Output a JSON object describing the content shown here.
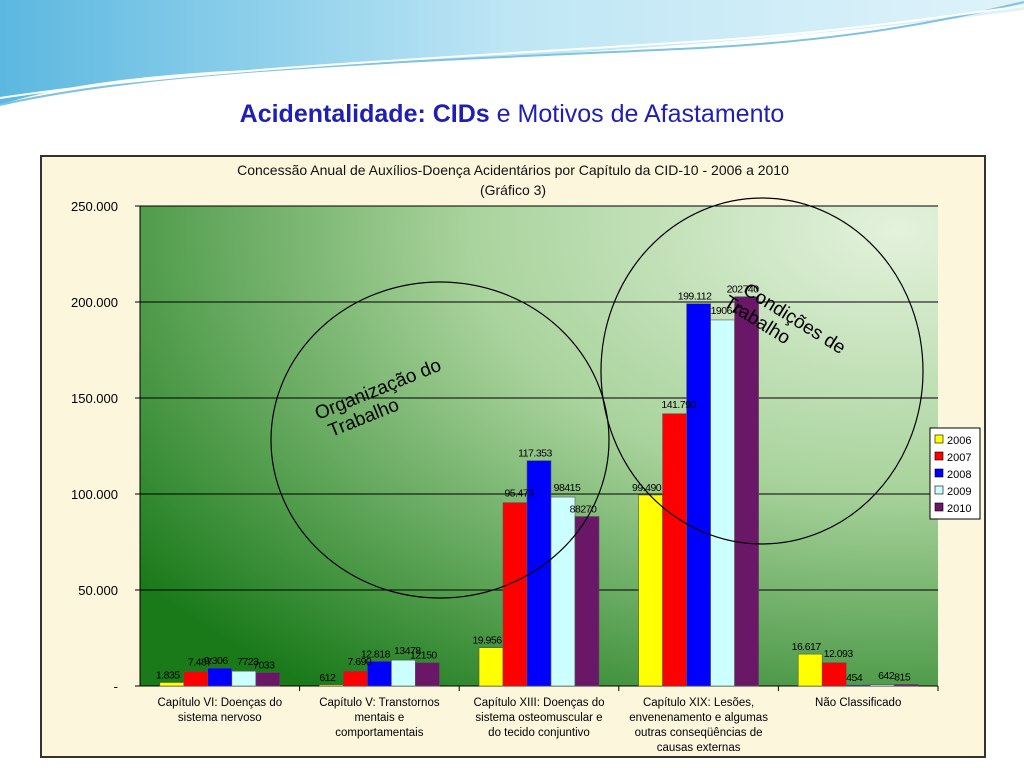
{
  "slide": {
    "title_bold": "Acidentalidade: CIDs",
    "title_rest": " e Motivos de Afastamento"
  },
  "colors": {
    "title": "#1f1fb4",
    "frame_bg": "#fbf6dc",
    "plot_bg_dark": "#1a7a1a",
    "plot_bg_light": "#c9e4c0"
  },
  "chart_data": {
    "type": "bar",
    "title": "Concessão Anual de Auxílios-Doença Acidentários por Capítulo da CID-10 - 2006 a 2010",
    "subtitle": "(Gráfico 3)",
    "ylim": [
      0,
      250000
    ],
    "yticks": [
      {
        "value": 0,
        "label": "-"
      },
      {
        "value": 50000,
        "label": "50.000"
      },
      {
        "value": 100000,
        "label": "100.000"
      },
      {
        "value": 150000,
        "label": "150.000"
      },
      {
        "value": 200000,
        "label": "200.000"
      },
      {
        "value": 250000,
        "label": "250.000"
      }
    ],
    "grid": true,
    "legend_position": "right",
    "categories": [
      [
        "Capítulo VI: Doenças do",
        "sistema nervoso"
      ],
      [
        "Capítulo V: Transtornos",
        "mentais e",
        "comportamentais"
      ],
      [
        "Capítulo XIII: Doenças do",
        "sistema osteomuscular e",
        "do tecido conjuntivo"
      ],
      [
        "Capítulo XIX: Lesões,",
        "envenenamento e algumas",
        "outras conseqüências de",
        "causas externas"
      ],
      [
        "Não Classificado"
      ]
    ],
    "series": [
      {
        "name": "2006",
        "color": "#ffff00",
        "values": [
          1835,
          612,
          19956,
          99490,
          16617
        ],
        "labels": [
          "1.835",
          "612",
          "19.956",
          "99.490",
          "16.617"
        ]
      },
      {
        "name": "2007",
        "color": "#ff0000",
        "values": [
          7487,
          7690,
          95473,
          141790,
          12093
        ],
        "labels": [
          "7.487",
          "7.690",
          "95.473",
          "141.790",
          "12.093"
        ]
      },
      {
        "name": "2008",
        "color": "#0000ff",
        "values": [
          9306,
          12818,
          117353,
          199112,
          454
        ],
        "labels": [
          "9.306",
          "12.818",
          "117.353",
          "199.112",
          "454"
        ]
      },
      {
        "name": "2009",
        "color": "#ccffff",
        "values": [
          7723,
          13478,
          98415,
          190647,
          642
        ],
        "labels": [
          "7723",
          "13478",
          "98415",
          "190647",
          "642"
        ]
      },
      {
        "name": "2010",
        "color": "#6b1768",
        "values": [
          7033,
          12150,
          88270,
          202740,
          815
        ],
        "labels": [
          "7033",
          "12150",
          "88270",
          "202740",
          "815"
        ]
      }
    ],
    "annotations": [
      {
        "text": "Organização do Trabalho"
      },
      {
        "text": "Condições de Trabalho"
      }
    ]
  }
}
